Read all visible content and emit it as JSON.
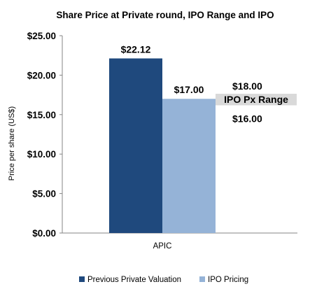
{
  "chart_data": {
    "type": "bar",
    "title": "Share Price at Private round, IPO Range and IPO",
    "ylabel": "Price per share (US$)",
    "xlabel": "",
    "categories": [
      "APIC"
    ],
    "ylim": [
      0,
      25
    ],
    "yticks": [
      "$0.00",
      "$5.00",
      "$10.00",
      "$15.00",
      "$20.00",
      "$25.00"
    ],
    "ytick_values": [
      0,
      5,
      10,
      15,
      20,
      25
    ],
    "grid": false,
    "legend_position": "bottom",
    "series": [
      {
        "name": "Previous Private Valuation",
        "values": [
          22.12
        ],
        "label": "$22.12",
        "color": "#1f497d"
      },
      {
        "name": "IPO Pricing",
        "values": [
          17.0
        ],
        "label": "$17.00",
        "color": "#95b3d7"
      }
    ],
    "range_annotation": {
      "label": "IPO Px Range",
      "high": 18.0,
      "low": 16.0,
      "high_label": "$18.00",
      "low_label": "$16.00",
      "color": "#d9d9d9"
    }
  }
}
